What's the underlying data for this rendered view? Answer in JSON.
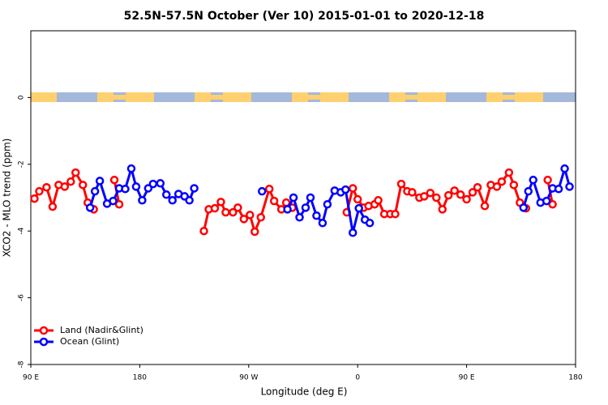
{
  "chart_data": {
    "type": "line",
    "title": "52.5N-57.5N October (Ver 10)   2015-01-01 to 2020-12-18",
    "x_label": "Longitude (deg E)",
    "y_label": "XCO2 - MLO trend (ppm)",
    "xlim": [
      90,
      540
    ],
    "xticks": [
      {
        "value": 90,
        "label": "90 E"
      },
      {
        "value": 180,
        "label": "180"
      },
      {
        "value": 270,
        "label": "90 W"
      },
      {
        "value": 360,
        "label": "0"
      },
      {
        "value": 450,
        "label": "90 E"
      },
      {
        "value": 540,
        "label": "180"
      }
    ],
    "ylim": [
      -8,
      2
    ],
    "yticks": [
      -8,
      -6,
      -4,
      -2,
      0
    ],
    "legend": "lower left",
    "series": [
      {
        "name": "Land (Nadir&Glint)",
        "color": "#ff0000",
        "x": [
          93,
          97,
          103,
          108,
          113,
          118,
          123,
          127,
          133,
          137,
          142,
          null,
          159,
          163,
          null,
          233,
          237,
          242,
          247,
          251,
          257,
          261,
          266,
          271,
          275,
          280,
          287,
          291,
          297,
          301,
          306,
          null,
          351,
          356,
          360,
          365,
          369,
          374,
          377,
          382,
          387,
          391,
          396,
          401,
          405,
          411,
          415,
          420,
          425,
          430,
          435,
          440,
          445,
          450,
          455,
          459,
          465,
          470,
          475,
          479,
          485,
          489,
          494,
          499,
          null,
          517,
          521
        ],
        "values": [
          -3.03,
          -2.81,
          -2.69,
          -3.27,
          -2.62,
          -2.67,
          -2.52,
          -2.25,
          -2.62,
          -3.15,
          -3.35,
          null,
          -2.47,
          -3.2,
          null,
          -4.0,
          -3.35,
          -3.32,
          -3.13,
          -3.44,
          -3.44,
          -3.3,
          -3.64,
          -3.52,
          -4.02,
          -3.59,
          -2.74,
          -3.1,
          -3.35,
          -3.15,
          -3.3,
          null,
          -3.44,
          -2.72,
          -3.05,
          -3.3,
          -3.25,
          -3.2,
          -3.08,
          -3.49,
          -3.49,
          -3.49,
          -2.59,
          -2.81,
          -2.84,
          -3.0,
          -2.96,
          -2.86,
          -3.0,
          -3.35,
          -2.93,
          -2.79,
          -2.91,
          -3.05,
          -2.84,
          -2.69,
          -3.25,
          -2.62,
          -2.67,
          -2.52,
          -2.25,
          -2.62,
          -3.15,
          -3.32,
          null,
          -2.47,
          -3.2
        ]
      },
      {
        "name": "Ocean (Glint)",
        "color": "#0000ff",
        "x": [
          139,
          143,
          147,
          153,
          158,
          163,
          168,
          173,
          177,
          182,
          187,
          191,
          197,
          202,
          207,
          212,
          217,
          221,
          225,
          null,
          281,
          null,
          302,
          307,
          312,
          317,
          321,
          326,
          331,
          335,
          341,
          346,
          350,
          356,
          361,
          366,
          370,
          null,
          497,
          501,
          505,
          511,
          516,
          521,
          526,
          531,
          535
        ],
        "values": [
          -3.3,
          -2.81,
          -2.5,
          -3.18,
          -3.1,
          -2.72,
          -2.74,
          -2.13,
          -2.67,
          -3.08,
          -2.72,
          -2.59,
          -2.57,
          -2.91,
          -3.08,
          -2.89,
          -2.96,
          -3.08,
          -2.72,
          null,
          -2.81,
          null,
          -3.35,
          -3.0,
          -3.59,
          -3.3,
          -3.0,
          -3.54,
          -3.76,
          -3.2,
          -2.79,
          -2.84,
          -2.76,
          -4.05,
          -3.32,
          -3.66,
          -3.76,
          null,
          -3.3,
          -2.81,
          -2.47,
          -3.15,
          -3.1,
          -2.72,
          -2.74,
          -2.13,
          -2.67
        ]
      }
    ]
  }
}
